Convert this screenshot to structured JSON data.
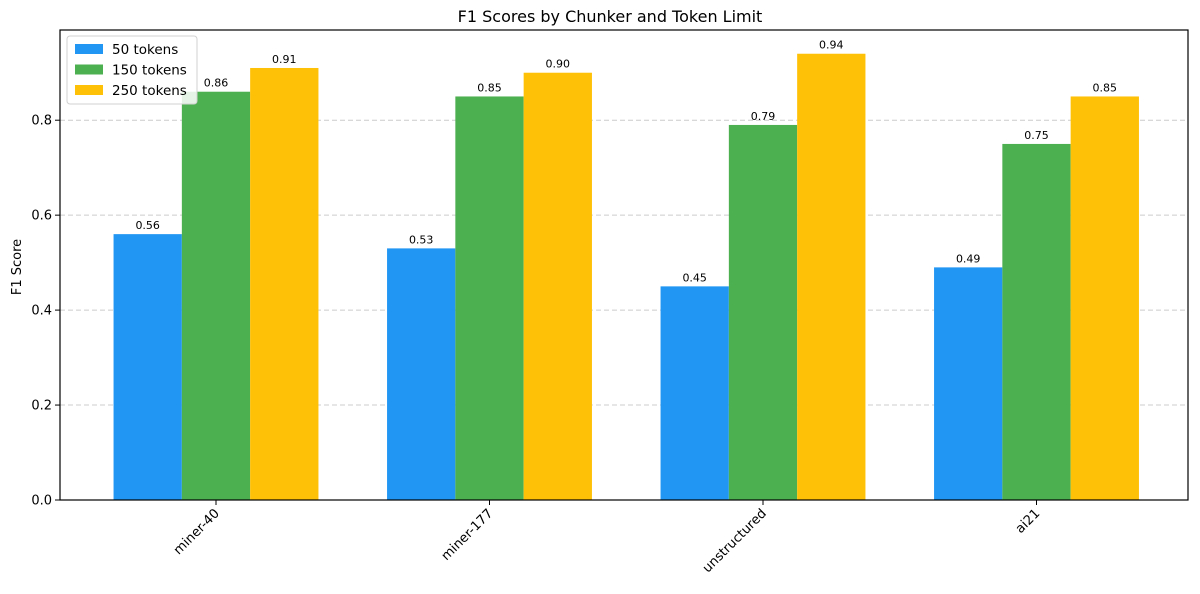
{
  "chart_data": {
    "type": "bar",
    "title": "F1 Scores by Chunker and Token Limit",
    "xlabel": "",
    "ylabel": "F1 Score",
    "categories": [
      "miner-40",
      "miner-177",
      "unstructured",
      "ai21"
    ],
    "series": [
      {
        "name": "50 tokens",
        "values": [
          0.56,
          0.53,
          0.45,
          0.49
        ],
        "color": "#2196F3"
      },
      {
        "name": "150 tokens",
        "values": [
          0.86,
          0.85,
          0.79,
          0.75
        ],
        "color": "#4CAF50"
      },
      {
        "name": "250 tokens",
        "values": [
          0.91,
          0.9,
          0.94,
          0.85
        ],
        "color": "#FFC107"
      }
    ],
    "data_labels": [
      [
        "0.56",
        "0.53",
        "0.45",
        "0.49"
      ],
      [
        "0.86",
        "0.85",
        "0.79",
        "0.75"
      ],
      [
        "0.91",
        "0.90",
        "0.94",
        "0.85"
      ]
    ],
    "yticks": [
      0.0,
      0.2,
      0.4,
      0.6,
      0.8
    ],
    "ytick_labels": [
      "0.0",
      "0.2",
      "0.4",
      "0.6",
      "0.8"
    ],
    "ylim": [
      0,
      0.99
    ],
    "grid": "y-dashed",
    "legend_position": "top-left"
  }
}
